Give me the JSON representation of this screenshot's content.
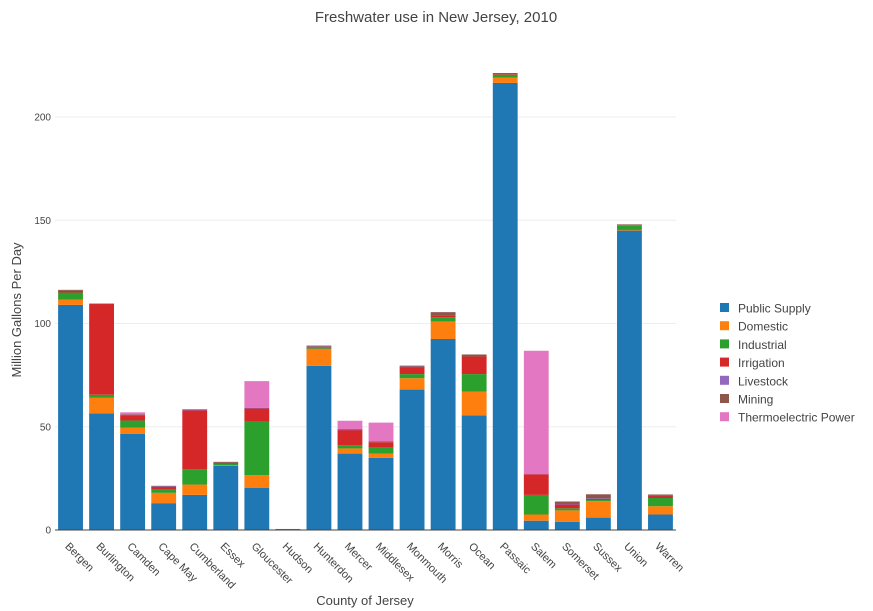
{
  "chart_data": {
    "type": "bar",
    "stacked": true,
    "title": "Freshwater use in New Jersey, 2010",
    "xlabel": "County of Jersey",
    "ylabel": "Million Gallons Per Day",
    "ylim": [
      0,
      225
    ],
    "yticks": [
      0,
      50,
      100,
      150,
      200
    ],
    "grid": true,
    "legend_position": "right",
    "categories": [
      "Bergen",
      "Burlington",
      "Camden",
      "Cape May",
      "Cumberland",
      "Essex",
      "Gloucester",
      "Hudson",
      "Hunterdon",
      "Mercer",
      "Middlesex",
      "Monmouth",
      "Morris",
      "Ocean",
      "Passaic",
      "Salem",
      "Somerset",
      "Sussex",
      "Union",
      "Warren"
    ],
    "series": [
      {
        "name": "Public Supply",
        "color": "#1f77b4",
        "values": [
          109,
          56.5,
          46.5,
          13,
          17,
          31,
          20.5,
          0,
          79.5,
          37,
          35,
          68,
          92.5,
          55.5,
          216.5,
          4.5,
          4,
          6,
          145,
          7.5
        ]
      },
      {
        "name": "Domestic",
        "color": "#ff7f0e",
        "values": [
          2.5,
          7.5,
          3,
          5,
          5,
          0.3,
          6,
          0,
          8,
          2.5,
          2,
          5.5,
          8.5,
          11.5,
          2.5,
          3,
          5.5,
          8,
          0.3,
          4
        ]
      },
      {
        "name": "Industrial",
        "color": "#2ca02c",
        "values": [
          3.5,
          1.5,
          3.5,
          1.5,
          7.5,
          0.7,
          26,
          0.5,
          0.5,
          1.5,
          3,
          2,
          2,
          8.5,
          1.5,
          9.5,
          1,
          0.5,
          2,
          4
        ]
      },
      {
        "name": "Irrigation",
        "color": "#d62728",
        "values": [
          0.8,
          44,
          2.5,
          1.5,
          28.5,
          0.5,
          6.5,
          0,
          0.5,
          7.5,
          2.5,
          3.5,
          1,
          8.5,
          0.3,
          10,
          2,
          0.5,
          0.3,
          1
        ]
      },
      {
        "name": "Livestock",
        "color": "#9467bd",
        "values": [
          0,
          0.2,
          0,
          0.1,
          0.2,
          0,
          0.1,
          0,
          0.3,
          0.1,
          0,
          0.1,
          0,
          0,
          0,
          0.3,
          0.1,
          0.3,
          0,
          0.2
        ]
      },
      {
        "name": "Mining",
        "color": "#8c564b",
        "values": [
          0.5,
          0,
          0.5,
          0.3,
          0.3,
          0.5,
          0,
          0,
          0.5,
          0.3,
          0.5,
          0.5,
          1.5,
          1,
          0.5,
          0,
          1.2,
          2,
          0.4,
          0.5
        ]
      },
      {
        "name": "Thermoelectric Power",
        "color": "#e377c2",
        "values": [
          0,
          0,
          1,
          0,
          0,
          0,
          13,
          0,
          0,
          4,
          9,
          0,
          0,
          0,
          0,
          59.5,
          0,
          0,
          0,
          0
        ]
      }
    ]
  }
}
